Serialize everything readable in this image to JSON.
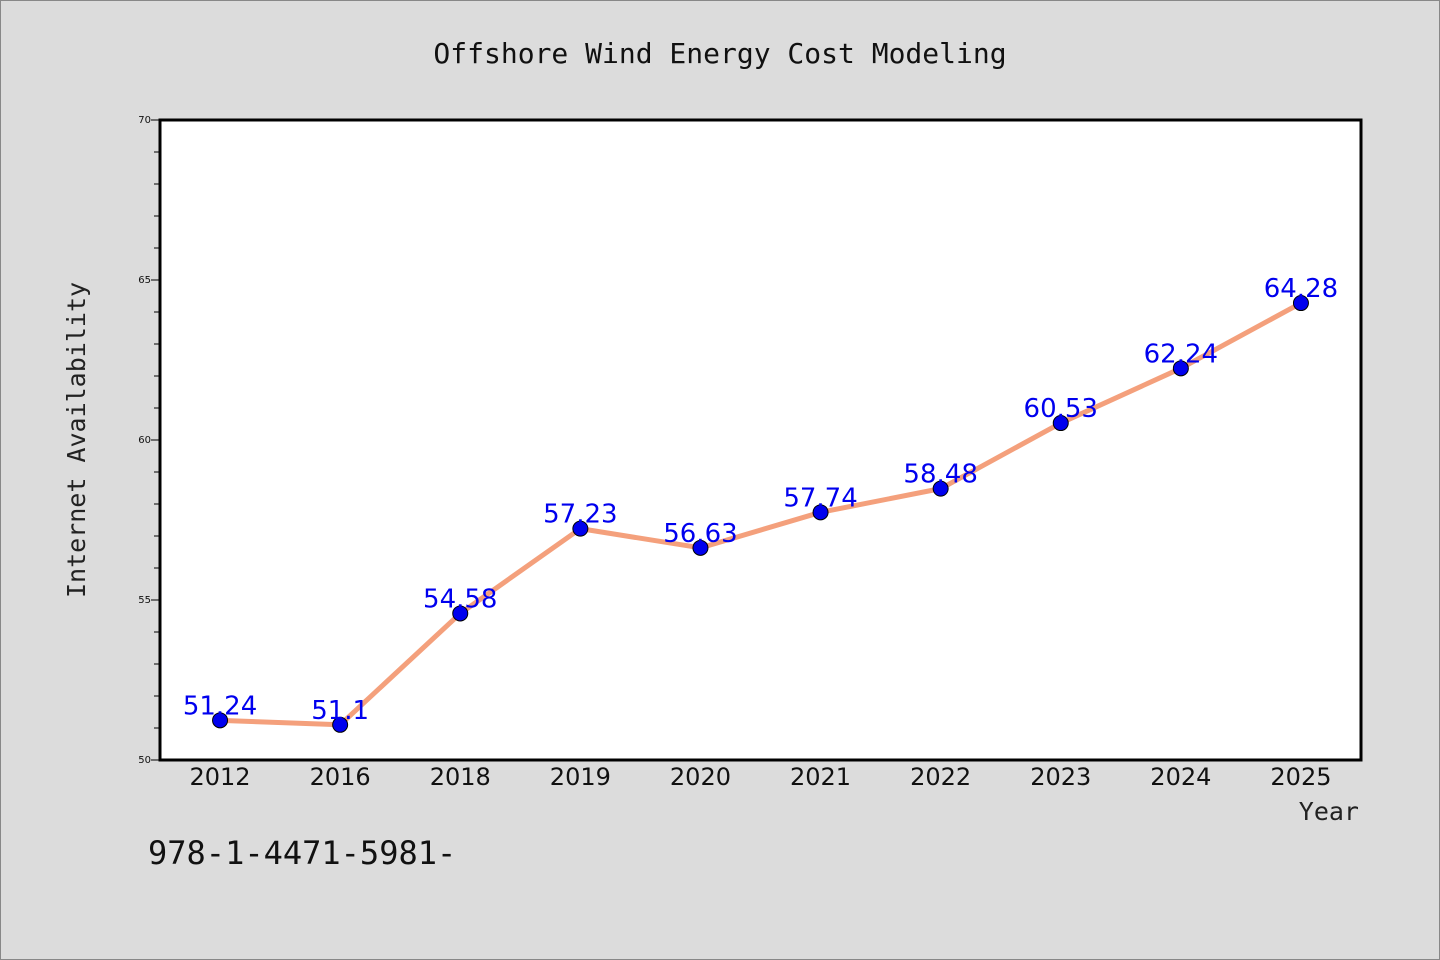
{
  "chart_data": {
    "type": "line",
    "title": "Offshore Wind Energy Cost Modeling",
    "xlabel": "Year",
    "ylabel": "Internet Availability",
    "categories": [
      "2012",
      "2016",
      "2018",
      "2019",
      "2020",
      "2021",
      "2022",
      "2023",
      "2024",
      "2025"
    ],
    "series": [
      {
        "values": [
          51.24,
          51.1,
          54.58,
          57.23,
          56.63,
          57.74,
          58.48,
          60.53,
          62.24,
          64.28
        ],
        "labels": [
          "51.24",
          "51.1",
          "54.58",
          "57.23",
          "56.63",
          "57.74",
          "58.48",
          "60.53",
          "62.24",
          "64.28"
        ],
        "line_color": "#f4a07c",
        "marker_color": "#0000ee"
      }
    ],
    "ylim": [
      50,
      70
    ],
    "yticks": [
      50,
      55,
      60,
      65,
      70
    ],
    "ytick_labels": [
      "50",
      "55",
      "60",
      "65",
      "70"
    ],
    "y_minor_step": 1,
    "grid": false,
    "legend": "none"
  },
  "footer": {
    "text": "978-1-4471-5981-"
  },
  "colors": {
    "background": "#dcdcdc",
    "plot_background": "#ffffff",
    "line": "#f4a07c",
    "marker": "#0000ee",
    "data_label": "#0000ee"
  }
}
